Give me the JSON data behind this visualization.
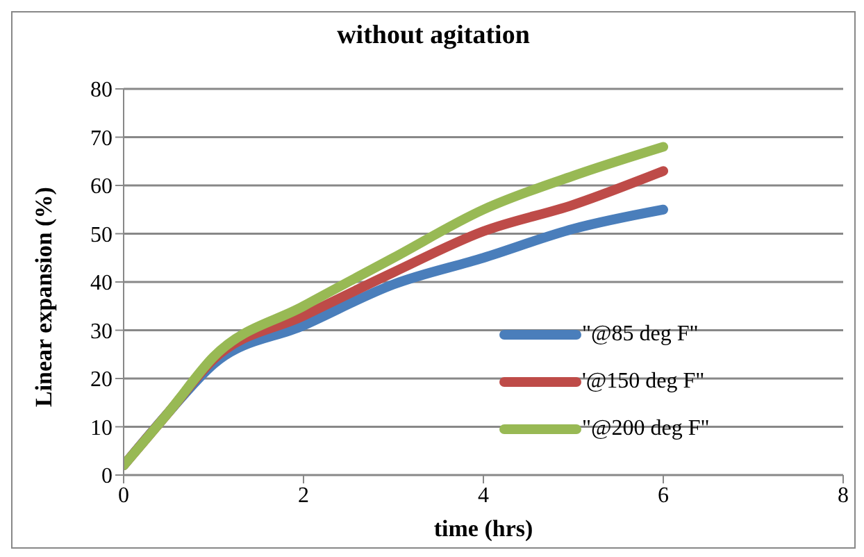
{
  "chart_data": {
    "type": "line",
    "title": "without agitation",
    "xlabel": "time (hrs)",
    "ylabel": "Linear expansion (%)",
    "x": [
      0,
      0.5,
      1,
      2,
      3,
      4,
      5,
      6
    ],
    "series": [
      {
        "name": "\"@85 deg F\"",
        "color": "#4a7ebb",
        "values": [
          2,
          13,
          23,
          31,
          39.5,
          45,
          51,
          55
        ]
      },
      {
        "name": "'@150 deg F\"",
        "color": "#be4b48",
        "values": [
          2,
          13,
          24,
          33,
          42,
          50.5,
          56,
          63
        ]
      },
      {
        "name": "\"@200 deg F\"",
        "color": "#98b954",
        "values": [
          2,
          13,
          24.5,
          35,
          45,
          55,
          62,
          68
        ]
      }
    ],
    "xlim": [
      0,
      8
    ],
    "xticks": [
      0,
      2,
      4,
      6,
      8
    ],
    "ylim": [
      0,
      80
    ],
    "yticks": [
      0,
      10,
      20,
      30,
      40,
      50,
      60,
      70,
      80
    ],
    "grid": "y",
    "legend": "bottom right",
    "marker": "none",
    "line_style": "solid"
  }
}
